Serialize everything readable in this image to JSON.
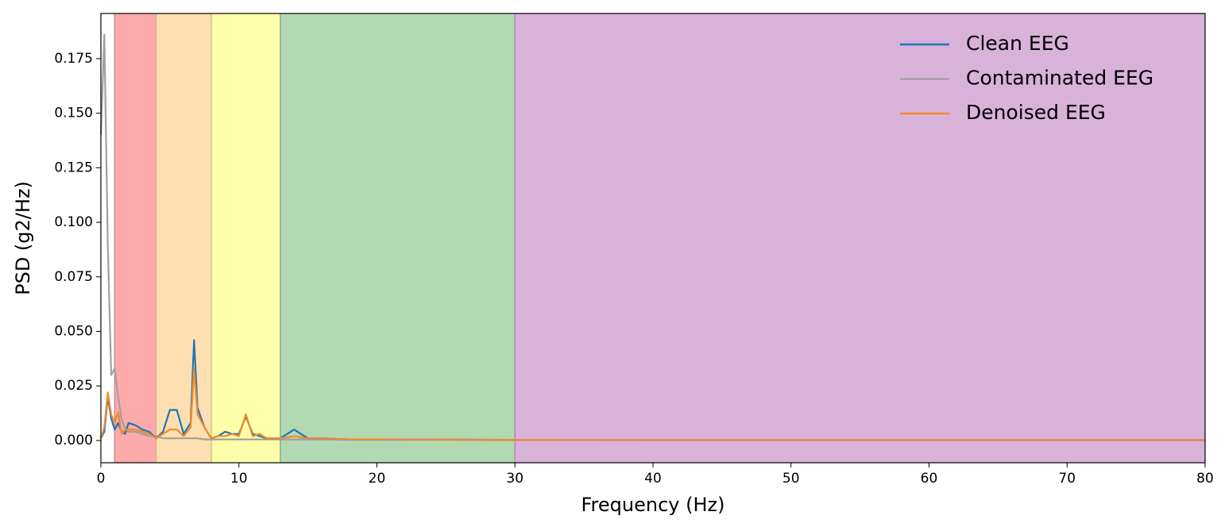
{
  "chart_data": {
    "type": "line",
    "xlabel": "Frequency (Hz)",
    "ylabel": "PSD (g2/Hz)",
    "xlim": [
      0,
      80
    ],
    "ylim": [
      -0.0102,
      0.1957
    ],
    "xticks": [
      0,
      10,
      20,
      30,
      40,
      50,
      60,
      70,
      80
    ],
    "yticks": [
      {
        "value": 0,
        "label": "0.000"
      },
      0.025,
      {
        "value": 0.05,
        "label": "0.050"
      },
      0.075,
      {
        "value": 0.1,
        "label": "0.100"
      },
      0.125,
      {
        "value": 0.15,
        "label": "0.150"
      },
      0.175
    ],
    "legend": "upper right",
    "bands": [
      {
        "start": 1,
        "end": 4,
        "color": "#ffaaaa"
      },
      {
        "start": 4,
        "end": 8,
        "color": "#fedfb1"
      },
      {
        "start": 8,
        "end": 13,
        "color": "#ffffaa"
      },
      {
        "start": 13,
        "end": 30,
        "color": "#b3d9b3"
      },
      {
        "start": 30,
        "end": 80,
        "color": "#d9b2d9"
      }
    ],
    "x": [
      0,
      0.25,
      0.5,
      0.75,
      1,
      1.25,
      1.5,
      1.75,
      2,
      2.5,
      3,
      3.5,
      4,
      4.5,
      5,
      5.5,
      6,
      6.5,
      6.75,
      7,
      7.5,
      8,
      8.5,
      9,
      9.5,
      10,
      10.5,
      11,
      11.5,
      12,
      13,
      14,
      15,
      16,
      18,
      20,
      25,
      30,
      40,
      50,
      60,
      70,
      80
    ],
    "series": [
      {
        "name": "Clean EEG",
        "color": "#1f77b4",
        "values": [
          0.001,
          0.004,
          0.02,
          0.01,
          0.005,
          0.008,
          0.004,
          0.003,
          0.008,
          0.007,
          0.005,
          0.004,
          0.001,
          0.004,
          0.014,
          0.014,
          0.003,
          0.008,
          0.046,
          0.015,
          0.006,
          0.001,
          0.002,
          0.004,
          0.003,
          0.003,
          0.011,
          0.003,
          0.002,
          0.001,
          0.001,
          0.005,
          0.001,
          0.001,
          0.0005,
          0.0005,
          0.0004,
          0.0003,
          0.0002,
          0.0002,
          0.0002,
          0.0002,
          0.0002
        ]
      },
      {
        "name": "Contaminated EEG",
        "color": "#a0a0a0",
        "values": [
          0.14,
          0.186,
          0.09,
          0.03,
          0.033,
          0.02,
          0.01,
          0.005,
          0.004,
          0.004,
          0.003,
          0.002,
          0.002,
          0.001,
          0.001,
          0.001,
          0.001,
          0.001,
          0.001,
          0.001,
          0.0005,
          0.0005,
          0.0005,
          0.0005,
          0.0005,
          0.0005,
          0.0005,
          0.0005,
          0.0005,
          0.0005,
          0.0005,
          0.0005,
          0.0005,
          0.0005,
          0.0003,
          0.0003,
          0.0003,
          0.0002,
          0.0002,
          0.0002,
          0.0002,
          0.0002,
          0.0002
        ]
      },
      {
        "name": "Denoised EEG",
        "color": "#f28a2e",
        "values": [
          0.001,
          0.006,
          0.022,
          0.012,
          0.008,
          0.013,
          0.003,
          0.005,
          0.005,
          0.005,
          0.004,
          0.003,
          0.001,
          0.003,
          0.005,
          0.005,
          0.002,
          0.006,
          0.033,
          0.012,
          0.006,
          0.001,
          0.002,
          0.002,
          0.003,
          0.002,
          0.012,
          0.002,
          0.003,
          0.001,
          0.001,
          0.002,
          0.001,
          0.001,
          0.0005,
          0.0005,
          0.0004,
          0.0003,
          0.0003,
          0.0003,
          0.0003,
          0.0003,
          0.0003
        ]
      }
    ]
  }
}
